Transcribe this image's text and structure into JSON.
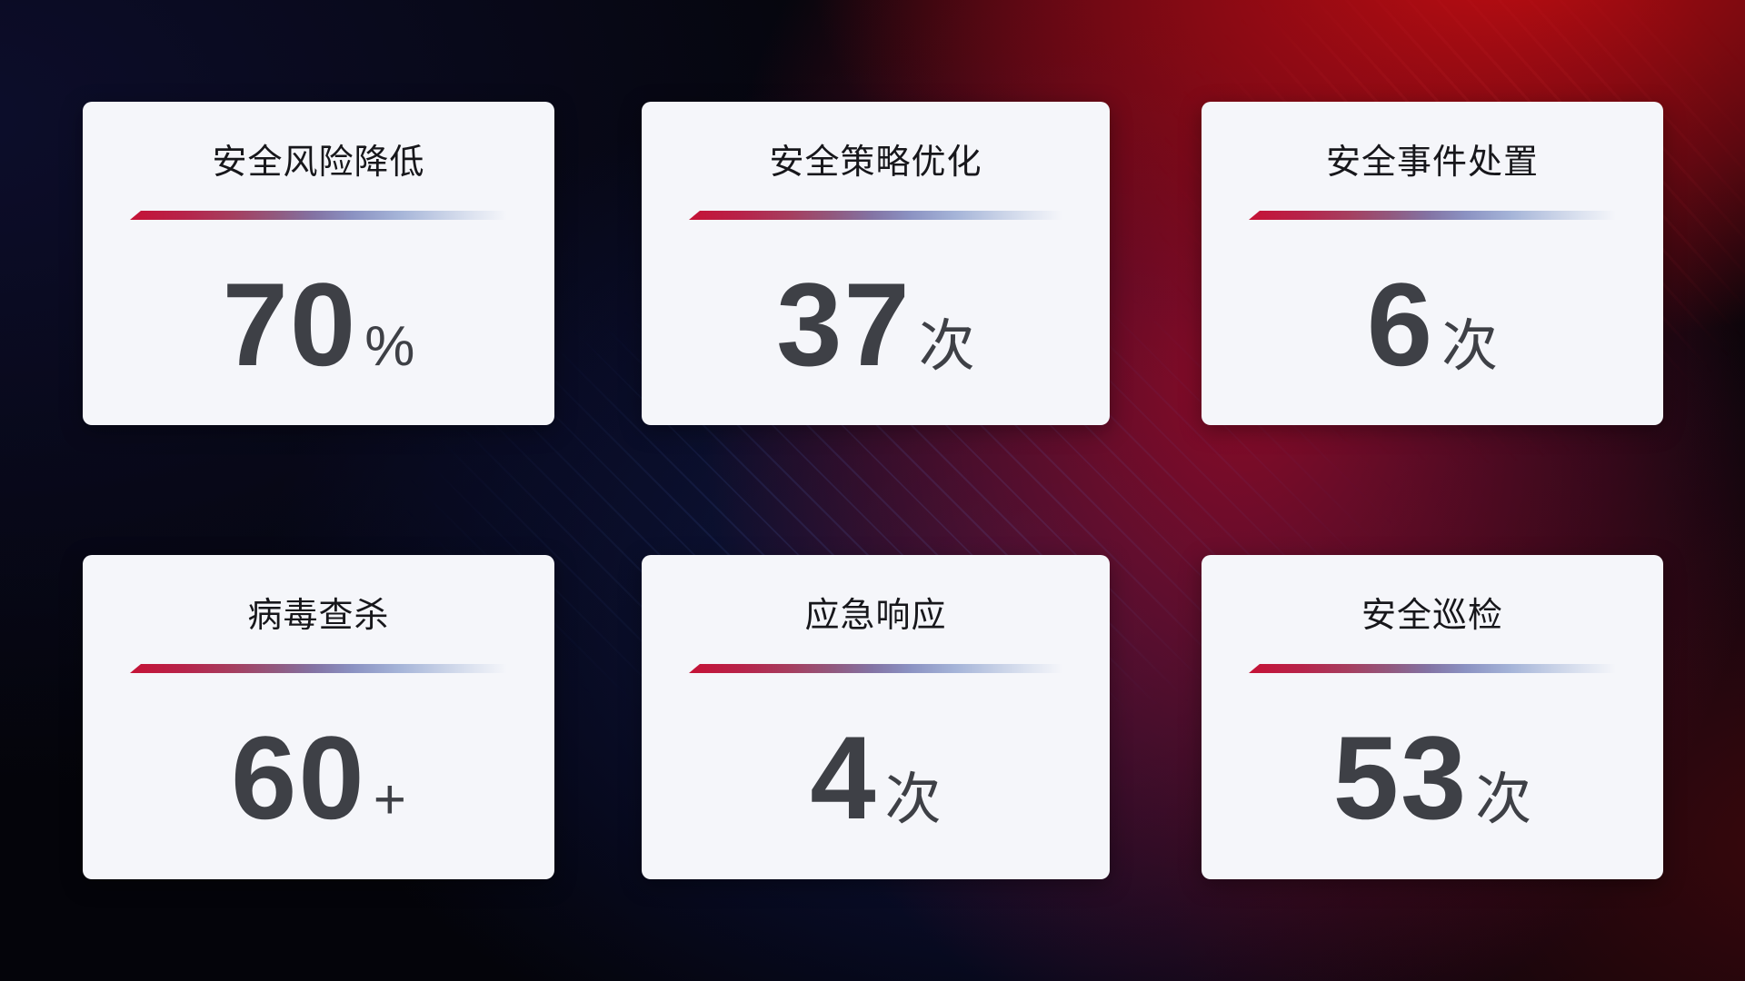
{
  "cards": [
    {
      "title": "安全风险降低",
      "value": "70",
      "unit": "%"
    },
    {
      "title": "安全策略优化",
      "value": "37",
      "unit": "次"
    },
    {
      "title": "安全事件处置",
      "value": "6",
      "unit": "次"
    },
    {
      "title": "病毒查杀",
      "value": "60",
      "unit": "+"
    },
    {
      "title": "应急响应",
      "value": "4",
      "unit": "次"
    },
    {
      "title": "安全巡检",
      "value": "53",
      "unit": "次"
    }
  ],
  "colors": {
    "card_background": "#f5f6fa",
    "title_text": "#17171b",
    "number_text": "#3e4046",
    "divider_red": "#c51236",
    "divider_blue": "#a5b4d8",
    "background_navy": "#0d0e2d",
    "background_blue_glow": "#1b2a7a",
    "background_red": "#c40d12"
  }
}
